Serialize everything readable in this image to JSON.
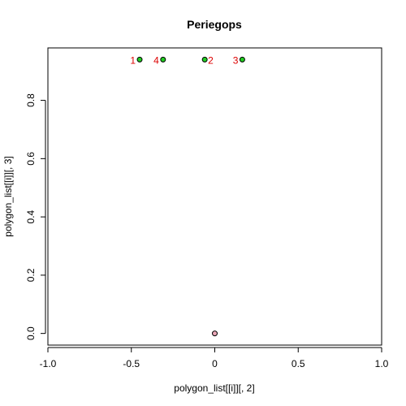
{
  "chart_data": {
    "type": "scatter",
    "title": "Periegops",
    "xlabel": "polygon_list[[i]][, 2]",
    "ylabel": "polygon_list[[i]][, 3]",
    "xlim": [
      -1.0,
      1.0
    ],
    "ylim": [
      -0.04,
      0.98
    ],
    "x_ticks": [
      -1.0,
      -0.5,
      0.0,
      0.5,
      1.0
    ],
    "x_tick_labels": [
      "-1.0",
      "-0.5",
      "0",
      "0.5",
      "1.0"
    ],
    "y_ticks": [
      0.0,
      0.2,
      0.4,
      0.6,
      0.8
    ],
    "y_tick_labels": [
      "0.0",
      "0.2",
      "0.4",
      "0.6",
      "0.8"
    ],
    "grid": false,
    "series": [
      {
        "color": "#22cc22",
        "points": [
          {
            "x": -0.45,
            "y": 0.94
          },
          {
            "x": -0.31,
            "y": 0.94
          },
          {
            "x": -0.06,
            "y": 0.94
          },
          {
            "x": 0.165,
            "y": 0.94
          }
        ]
      },
      {
        "color": "#e9a6b6",
        "points": [
          {
            "x": 0.0,
            "y": 0.0
          }
        ]
      }
    ],
    "annotations": [
      {
        "text": "1",
        "x": -0.45,
        "y": 0.94,
        "side": "left",
        "color": "#dd0000"
      },
      {
        "text": "4",
        "x": -0.31,
        "y": 0.94,
        "side": "left",
        "color": "#dd0000"
      },
      {
        "text": "2",
        "x": -0.06,
        "y": 0.94,
        "side": "right",
        "color": "#dd0000"
      },
      {
        "text": "3",
        "x": 0.165,
        "y": 0.94,
        "side": "left",
        "color": "#dd0000"
      }
    ]
  }
}
